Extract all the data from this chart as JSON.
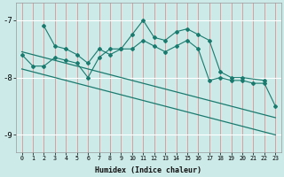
{
  "xlabel": "Humidex (Indice chaleur)",
  "bg_color": "#cceae8",
  "line_color": "#1a7a6e",
  "grid_color_v": "#e08080",
  "grid_color_h": "#ffffff",
  "xlim": [
    -0.5,
    23.5
  ],
  "ylim": [
    -9.3,
    -6.7
  ],
  "yticks": [
    -9,
    -8,
    -7
  ],
  "xticks": [
    0,
    1,
    2,
    3,
    4,
    5,
    6,
    7,
    8,
    9,
    10,
    11,
    12,
    13,
    14,
    15,
    16,
    17,
    18,
    19,
    20,
    21,
    22,
    23
  ],
  "series1_x": [
    2,
    3,
    4,
    5,
    6,
    7,
    8,
    9,
    10,
    11,
    12,
    13,
    14,
    15,
    16,
    17,
    18,
    19,
    20,
    22
  ],
  "series1_y": [
    -7.1,
    -7.45,
    -7.5,
    -7.6,
    -7.75,
    -7.5,
    -7.6,
    -7.5,
    -7.25,
    -7.0,
    -7.3,
    -7.35,
    -7.2,
    -7.15,
    -7.25,
    -7.35,
    -7.9,
    -8.0,
    -8.0,
    -8.05
  ],
  "series2_x": [
    0,
    1,
    2,
    3,
    4,
    5,
    6,
    7,
    8,
    9,
    10,
    11,
    12,
    13,
    14,
    15,
    16,
    17,
    18,
    19,
    20,
    21,
    22,
    23
  ],
  "series2_y": [
    -7.6,
    -7.8,
    -7.8,
    -7.65,
    -7.7,
    -7.75,
    -8.0,
    -7.65,
    -7.5,
    -7.5,
    -7.5,
    -7.35,
    -7.45,
    -7.55,
    -7.45,
    -7.35,
    -7.5,
    -8.05,
    -8.0,
    -8.05,
    -8.05,
    -8.1,
    -8.1,
    -8.5
  ],
  "series3_x": [
    0,
    23
  ],
  "series3_y": [
    -7.55,
    -8.7
  ],
  "series4_x": [
    0,
    23
  ],
  "series4_y": [
    -7.85,
    -9.0
  ]
}
